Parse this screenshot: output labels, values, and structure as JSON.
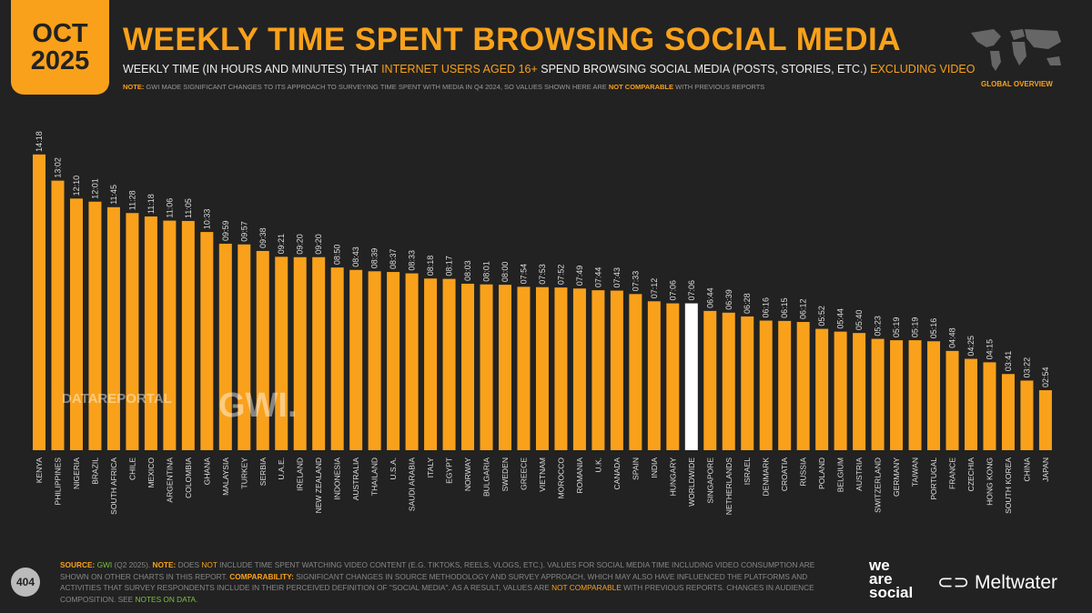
{
  "header": {
    "month": "OCT",
    "year": "2025",
    "title": "WEEKLY TIME SPENT BROWSING SOCIAL MEDIA",
    "subtitle_a": "WEEKLY TIME (IN HOURS AND MINUTES) THAT ",
    "subtitle_b": "INTERNET USERS AGED 16+",
    "subtitle_c": " SPEND BROWSING SOCIAL MEDIA (POSTS, STORIES, ETC.) ",
    "subtitle_d": "EXCLUDING VIDEO",
    "note_label": "NOTE:",
    "note_a": " GWI MADE SIGNIFICANT CHANGES TO ITS APPROACH TO SURVEYING TIME SPENT WITH MEDIA IN Q4 2024, SO VALUES SHOWN HERE ARE ",
    "note_b": "NOT COMPARABLE",
    "note_c": " WITH PREVIOUS REPORTS",
    "section": "GLOBAL OVERVIEW"
  },
  "watermarks": {
    "datareportal": "DATAREPORTAL",
    "gwi": "GWI."
  },
  "colors": {
    "bar": "#F9A11B",
    "highlight": "#FFFFFF",
    "background": "#222222"
  },
  "chart_data": {
    "type": "bar",
    "highlight": "WORLDWIDE",
    "unit": "hours:minutes",
    "categories": [
      "KENYA",
      "PHILIPPINES",
      "NIGERIA",
      "BRAZIL",
      "SOUTH AFRICA",
      "CHILE",
      "MEXICO",
      "ARGENTINA",
      "COLOMBIA",
      "GHANA",
      "MALAYSIA",
      "TURKEY",
      "SERBIA",
      "U.A.E.",
      "IRELAND",
      "NEW ZEALAND",
      "INDONESIA",
      "AUSTRALIA",
      "THAILAND",
      "U.S.A.",
      "SAUDI ARABIA",
      "ITALY",
      "EGYPT",
      "NORWAY",
      "BULGARIA",
      "SWEDEN",
      "GREECE",
      "VIETNAM",
      "MOROCCO",
      "ROMANIA",
      "U.K.",
      "CANADA",
      "SPAIN",
      "INDIA",
      "HUNGARY",
      "WORLDWIDE",
      "SINGAPORE",
      "NETHERLANDS",
      "ISRAEL",
      "DENMARK",
      "CROATIA",
      "RUSSIA",
      "POLAND",
      "BELGIUM",
      "AUSTRIA",
      "SWITZERLAND",
      "GERMANY",
      "TAIWAN",
      "PORTUGAL",
      "FRANCE",
      "CZECHIA",
      "HONG KONG",
      "SOUTH KOREA",
      "CHINA",
      "JAPAN"
    ],
    "values": [
      "14:18",
      "13:02",
      "12:10",
      "12:01",
      "11:45",
      "11:28",
      "11:18",
      "11:06",
      "11:05",
      "10:33",
      "09:59",
      "09:57",
      "09:38",
      "09:21",
      "09:20",
      "09:20",
      "08:50",
      "08:43",
      "08:39",
      "08:37",
      "08:33",
      "08:18",
      "08:17",
      "08:03",
      "08:01",
      "08:00",
      "07:54",
      "07:53",
      "07:52",
      "07:49",
      "07:44",
      "07:43",
      "07:33",
      "07:12",
      "07:06",
      "07:06",
      "06:44",
      "06:39",
      "06:28",
      "06:16",
      "06:15",
      "06:12",
      "05:52",
      "05:44",
      "05:40",
      "05:23",
      "05:19",
      "05:19",
      "05:16",
      "04:48",
      "04:25",
      "04:15",
      "03:41",
      "03:22",
      "02:54"
    ]
  },
  "footer": {
    "source_label": "SOURCE:",
    "source_gwi": "GWI",
    "source_rest": " (Q2 2025). ",
    "note_label": "NOTE:",
    "note_a": " DOES ",
    "note_not": "NOT",
    "note_b": " INCLUDE TIME SPENT WATCHING VIDEO CONTENT (E.G. TIKTOKS, REELS, VLOGS, ETC.). VALUES FOR SOCIAL MEDIA TIME INCLUDING VIDEO CONSUMPTION ARE SHOWN ON OTHER CHARTS IN THIS REPORT. ",
    "comp_label": "COMPARABILITY:",
    "comp_a": " SIGNIFICANT CHANGES IN SOURCE METHODOLOGY AND SURVEY APPROACH, WHICH MAY ALSO HAVE INFLUENCED THE PLATFORMS AND ACTIVITIES THAT SURVEY RESPONDENTS INCLUDE IN THEIR PERCEIVED DEFINITION OF \"SOCIAL MEDIA\". AS A RESULT, VALUES ARE ",
    "comp_nc": "NOT COMPARABLE",
    "comp_b": " WITH PREVIOUS REPORTS. CHANGES IN AUDIENCE COMPOSITION. SEE ",
    "notes_link": "NOTES ON DATA",
    "comp_end": ".",
    "page": "404",
    "brand1": "we are social",
    "brand2": "Meltwater"
  }
}
